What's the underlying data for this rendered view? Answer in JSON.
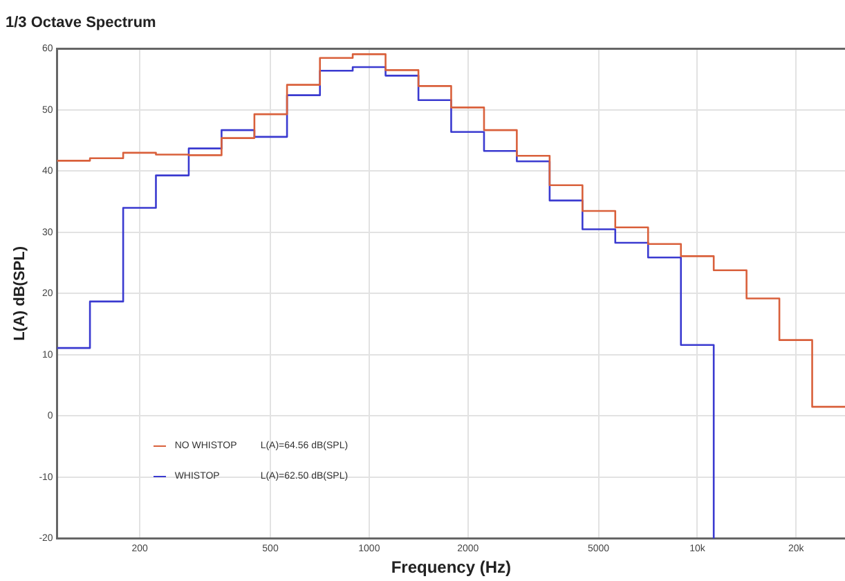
{
  "chart_data": {
    "type": "step",
    "title": "1/3 Octave Spectrum",
    "xlabel": "Frequency (Hz)",
    "ylabel": "L(A) dB(SPL)",
    "x": [
      112,
      141,
      178,
      224,
      282,
      355,
      447,
      562,
      708,
      891,
      1122,
      1413,
      1778,
      2239,
      2818,
      3548,
      4467,
      5623,
      7079,
      8913,
      11220,
      14125,
      17783,
      22387,
      28184
    ],
    "series": [
      {
        "name": "NO WHISTOP",
        "color": "#d9603b",
        "values": [
          41.7,
          42.1,
          43.0,
          42.7,
          42.6,
          45.4,
          49.3,
          54.1,
          58.5,
          59.1,
          56.5,
          53.9,
          50.4,
          46.7,
          42.5,
          37.7,
          33.5,
          30.8,
          28.1,
          26.1,
          23.8,
          19.2,
          12.4,
          1.5,
          1.5
        ]
      },
      {
        "name": "WHISTOP",
        "color": "#3a3ad0",
        "x": [
          112,
          141,
          178,
          224,
          282,
          355,
          447,
          562,
          708,
          891,
          1122,
          1413,
          1778,
          2239,
          2818,
          3548,
          4467,
          5623,
          7079,
          8913,
          11220
        ],
        "values": [
          11.1,
          18.7,
          34.0,
          39.3,
          43.7,
          46.7,
          45.6,
          52.4,
          56.4,
          57.0,
          55.6,
          51.6,
          46.4,
          43.3,
          41.6,
          35.2,
          30.5,
          28.3,
          25.9,
          11.6,
          -20
        ]
      }
    ],
    "annotations": [
      "L(A)=64.56 dB(SPL)",
      "L(A)=62.50 dB(SPL)"
    ],
    "xlim": [
      112,
      28184
    ],
    "ylim": [
      -20,
      60
    ],
    "log": "x",
    "xticks": [
      200,
      500,
      1000,
      2000,
      5000,
      {
        "value": 10000,
        "label": "10k"
      },
      {
        "value": 20000,
        "label": "20k"
      }
    ],
    "yticks": [
      -20,
      -10,
      0,
      10,
      20,
      30,
      40,
      50,
      60
    ],
    "grid": true,
    "legend": "bottom left",
    "marker": "none",
    "line_style": "solid"
  }
}
